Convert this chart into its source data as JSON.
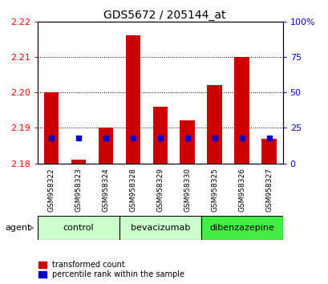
{
  "title": "GDS5672 / 205144_at",
  "samples": [
    "GSM958322",
    "GSM958323",
    "GSM958324",
    "GSM958328",
    "GSM958329",
    "GSM958330",
    "GSM958325",
    "GSM958326",
    "GSM958327"
  ],
  "red_values": [
    2.2,
    2.181,
    2.19,
    2.216,
    2.196,
    2.192,
    2.202,
    2.21,
    2.187
  ],
  "blue_pct": [
    18,
    18,
    18,
    18,
    18,
    18,
    18,
    18,
    18
  ],
  "y_min": 2.18,
  "y_max": 2.22,
  "y_ticks": [
    2.18,
    2.19,
    2.2,
    2.21,
    2.22
  ],
  "y2_ticks": [
    0,
    25,
    50,
    75,
    100
  ],
  "groups": [
    {
      "label": "control",
      "indices": [
        0,
        1,
        2
      ],
      "color": "#ccffcc"
    },
    {
      "label": "bevacizumab",
      "indices": [
        3,
        4,
        5
      ],
      "color": "#ccffcc"
    },
    {
      "label": "dibenzazepine",
      "indices": [
        6,
        7,
        8
      ],
      "color": "#44ee44"
    }
  ],
  "bar_bottom": 2.18,
  "red_color": "#cc0000",
  "blue_color": "#0000cc",
  "bar_width": 0.55,
  "legend_items": [
    "transformed count",
    "percentile rank within the sample"
  ]
}
